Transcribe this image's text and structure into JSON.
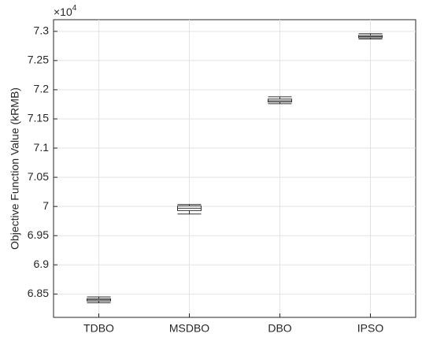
{
  "chart_data": {
    "type": "box",
    "y_label": "Objective Function Value (kRMB)",
    "y_multiplier": {
      "base": "×10",
      "exponent": "4"
    },
    "categories": [
      "TDBO",
      "MSDBO",
      "DBO",
      "IPSO"
    ],
    "whisker_low": [
      6.835,
      6.987,
      7.176,
      7.287
    ],
    "q1": [
      6.838,
      6.993,
      7.179,
      7.289
    ],
    "median": [
      6.84,
      6.997,
      7.181,
      7.291
    ],
    "q3": [
      6.842,
      7.001,
      7.184,
      7.293
    ],
    "whisker_high": [
      6.845,
      7.0035,
      7.188,
      7.296
    ],
    "color": "#333333",
    "ylim": [
      6.81,
      7.32
    ],
    "yticks": [
      6.85,
      6.9,
      6.95,
      7,
      7.05,
      7.1,
      7.15,
      7.2,
      7.25,
      7.3
    ],
    "grid": true
  }
}
